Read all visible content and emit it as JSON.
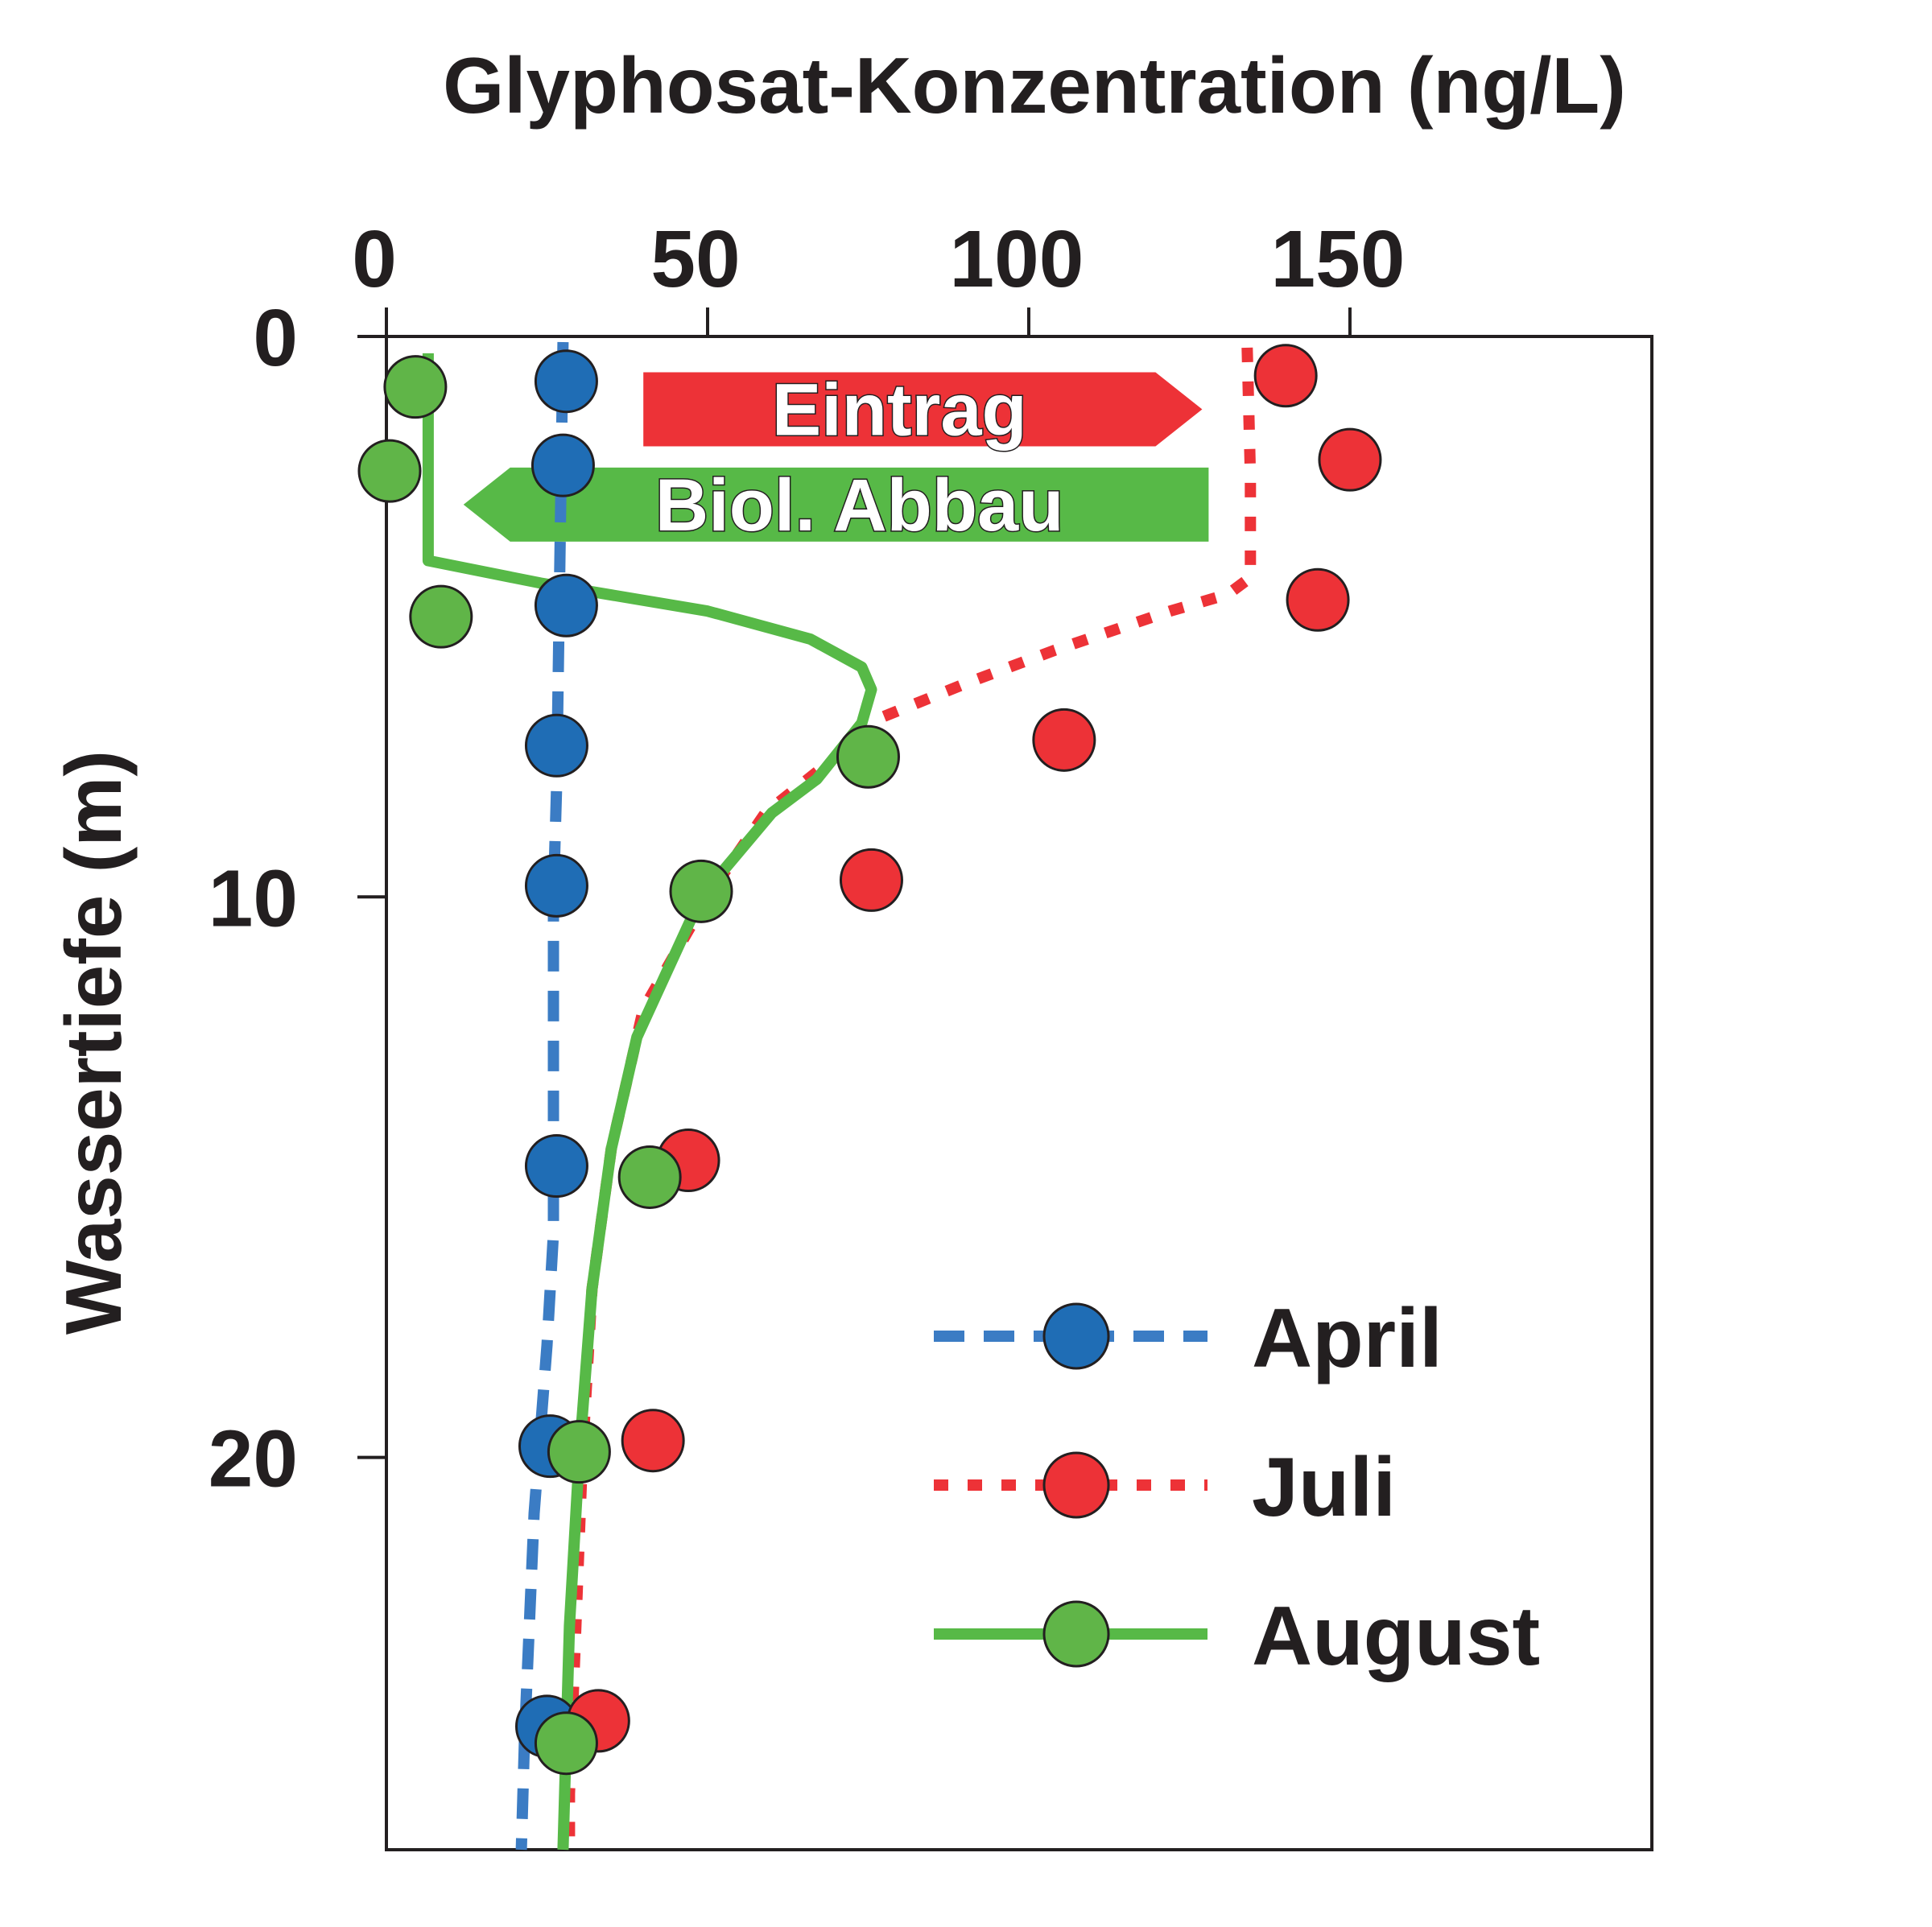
{
  "chart_data": {
    "type": "scatter",
    "xlabel": "Glyphosat-Konzentration (ng/L)",
    "ylabel": "Wassertiefe (m)",
    "xlim": [
      0,
      197
    ],
    "ylim": [
      0,
      27
    ],
    "x_ticks": [
      "0",
      "50",
      "100",
      "150"
    ],
    "y_ticks": [
      "0",
      "10",
      "20"
    ],
    "x_axis_position": "top",
    "y_axis_inverted": true,
    "grid": false,
    "legend_position": "bottom-right",
    "series": [
      {
        "name": "April",
        "color": "#1f6db5",
        "line_color": "#3b7cc4",
        "line_style": "dashed",
        "points": [
          [
            28,
            0.8
          ],
          [
            27.5,
            2.3
          ],
          [
            28,
            4.8
          ],
          [
            26.5,
            7.3
          ],
          [
            26.5,
            9.8
          ],
          [
            26.5,
            14.8
          ],
          [
            25.5,
            19.8
          ],
          [
            25,
            24.8
          ]
        ],
        "line": [
          [
            27.5,
            0.1
          ],
          [
            27,
            4
          ],
          [
            26.5,
            8
          ],
          [
            26,
            10
          ],
          [
            26,
            14
          ],
          [
            26,
            16
          ],
          [
            25,
            18
          ],
          [
            23,
            21
          ],
          [
            21.5,
            25
          ],
          [
            21,
            27
          ]
        ]
      },
      {
        "name": "Juli",
        "color": "#ed3237",
        "line_color": "#ed3237",
        "line_style": "dotted",
        "points": [
          [
            140,
            0.7
          ],
          [
            150,
            2.2
          ],
          [
            145,
            4.7
          ],
          [
            105.5,
            7.2
          ],
          [
            75.5,
            9.7
          ],
          [
            47,
            14.7
          ],
          [
            41.5,
            19.7
          ],
          [
            33,
            24.7
          ]
        ],
        "line": [
          [
            134,
            0.2
          ],
          [
            134.5,
            2.5
          ],
          [
            134.5,
            4.3
          ],
          [
            131,
            4.6
          ],
          [
            122,
            4.9
          ],
          [
            104,
            5.6
          ],
          [
            90,
            6.2
          ],
          [
            77,
            6.8
          ],
          [
            70,
            7.5
          ],
          [
            59,
            8.5
          ],
          [
            50,
            10
          ],
          [
            40,
            12
          ],
          [
            35,
            14.5
          ],
          [
            32,
            17
          ],
          [
            30.5,
            20
          ],
          [
            29.5,
            23
          ],
          [
            28.5,
            26
          ],
          [
            28.5,
            27
          ]
        ]
      },
      {
        "name": "August",
        "color": "#60b548",
        "line_color": "#57b947",
        "line_style": "solid",
        "points": [
          [
            4.5,
            0.9
          ],
          [
            0.5,
            2.4
          ],
          [
            8.5,
            5
          ],
          [
            75,
            7.5
          ],
          [
            49,
            9.9
          ],
          [
            41,
            15
          ],
          [
            30,
            19.9
          ],
          [
            28,
            25.1
          ]
        ],
        "line": [
          [
            6.5,
            0.3
          ],
          [
            6.5,
            4
          ],
          [
            24,
            4.4
          ],
          [
            50,
            4.9
          ],
          [
            66,
            5.4
          ],
          [
            74,
            5.9
          ],
          [
            75.5,
            6.3
          ],
          [
            74,
            6.9
          ],
          [
            67,
            7.9
          ],
          [
            60,
            8.5
          ],
          [
            49,
            10
          ],
          [
            39,
            12.5
          ],
          [
            35,
            14.5
          ],
          [
            32,
            17
          ],
          [
            30,
            20
          ],
          [
            28.5,
            23
          ],
          [
            27.5,
            27
          ]
        ]
      }
    ],
    "annotations": [
      {
        "text": "Eintrag",
        "direction": "right",
        "color": "#ed3237",
        "x_range": [
          40,
          127
        ],
        "y": 1.3
      },
      {
        "text": "Biol. Abbau",
        "direction": "left",
        "color": "#57b947",
        "x_range": [
          12,
          128
        ],
        "y": 3
      }
    ]
  }
}
